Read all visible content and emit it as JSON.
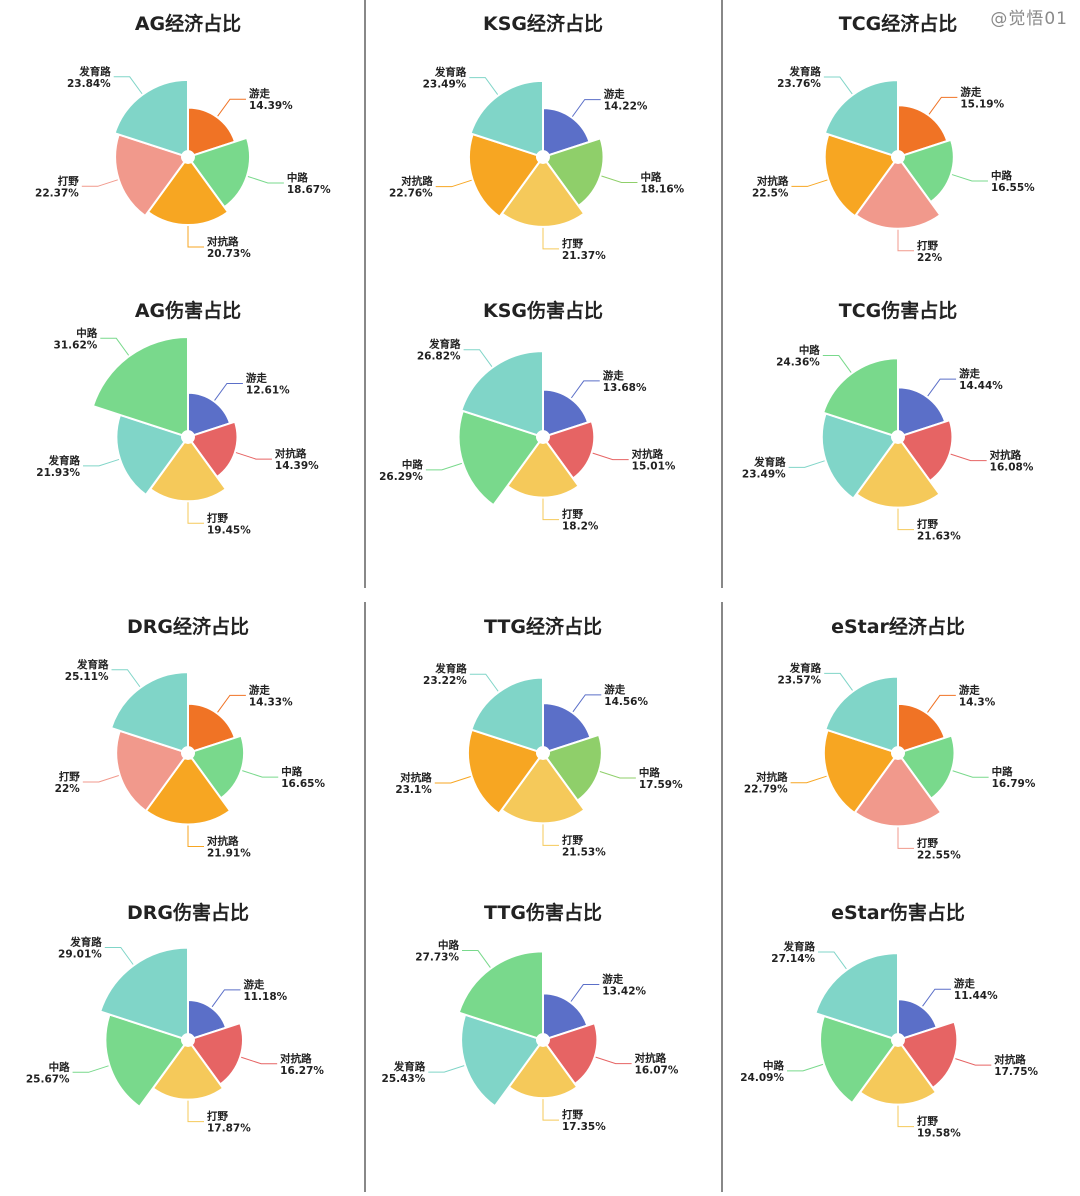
{
  "watermark": "@觉悟01",
  "colors": {
    "游走": [
      "#f07325",
      "#5b6fc8"
    ],
    "中路": [
      "#79d98c",
      "#8fcf6a"
    ],
    "对抗路": [
      "#f7a622",
      "#e66464"
    ],
    "打野": [
      "#f1998c",
      "#f5c95a"
    ],
    "发育路": [
      "#80d5c8"
    ]
  },
  "chart_data": [
    {
      "type": "pie",
      "variant": "nightingale-rose",
      "title": "AG经济占比",
      "role_labels": [
        "游走",
        "中路",
        "对抗路",
        "打野",
        "发育路"
      ],
      "values": [
        14.39,
        18.67,
        20.73,
        22.37,
        23.84
      ],
      "value_labels": [
        "14.39%",
        "18.67%",
        "20.73%",
        "22.37%",
        "23.84%"
      ],
      "colors": [
        "#f07325",
        "#79d98c",
        "#f7a622",
        "#f1998c",
        "#80d5c8"
      ]
    },
    {
      "type": "pie",
      "variant": "nightingale-rose",
      "title": "KSG经济占比",
      "role_labels": [
        "游走",
        "中路",
        "打野",
        "对抗路",
        "发育路"
      ],
      "values": [
        14.22,
        18.16,
        21.37,
        22.76,
        23.49
      ],
      "value_labels": [
        "14.22%",
        "18.16%",
        "21.37%",
        "22.76%",
        "23.49%"
      ],
      "colors": [
        "#5b6fc8",
        "#8fcf6a",
        "#f5c95a",
        "#f7a622",
        "#80d5c8"
      ]
    },
    {
      "type": "pie",
      "variant": "nightingale-rose",
      "title": "TCG经济占比",
      "role_labels": [
        "游走",
        "中路",
        "打野",
        "对抗路",
        "发育路"
      ],
      "values": [
        15.19,
        16.55,
        22,
        22.5,
        23.76
      ],
      "value_labels": [
        "15.19%",
        "16.55%",
        "22%",
        "22.5%",
        "23.76%"
      ],
      "colors": [
        "#f07325",
        "#79d98c",
        "#f1998c",
        "#f7a622",
        "#80d5c8"
      ]
    },
    {
      "type": "pie",
      "variant": "nightingale-rose",
      "title": "AG伤害占比",
      "role_labels": [
        "游走",
        "对抗路",
        "打野",
        "发育路",
        "中路"
      ],
      "values": [
        12.61,
        14.39,
        19.45,
        21.93,
        31.62
      ],
      "value_labels": [
        "12.61%",
        "14.39%",
        "19.45%",
        "21.93%",
        "31.62%"
      ],
      "colors": [
        "#5b6fc8",
        "#e66464",
        "#f5c95a",
        "#80d5c8",
        "#79d98c"
      ]
    },
    {
      "type": "pie",
      "variant": "nightingale-rose",
      "title": "KSG伤害占比",
      "role_labels": [
        "游走",
        "对抗路",
        "打野",
        "中路",
        "发育路"
      ],
      "values": [
        13.68,
        15.01,
        18.2,
        26.29,
        26.82
      ],
      "value_labels": [
        "13.68%",
        "15.01%",
        "18.2%",
        "26.29%",
        "26.82%"
      ],
      "colors": [
        "#5b6fc8",
        "#e66464",
        "#f5c95a",
        "#79d98c",
        "#80d5c8"
      ]
    },
    {
      "type": "pie",
      "variant": "nightingale-rose",
      "title": "TCG伤害占比",
      "role_labels": [
        "游走",
        "对抗路",
        "打野",
        "发育路",
        "中路"
      ],
      "values": [
        14.44,
        16.08,
        21.63,
        23.49,
        24.36
      ],
      "value_labels": [
        "14.44%",
        "16.08%",
        "21.63%",
        "23.49%",
        "24.36%"
      ],
      "colors": [
        "#5b6fc8",
        "#e66464",
        "#f5c95a",
        "#80d5c8",
        "#79d98c"
      ]
    },
    {
      "type": "pie",
      "variant": "nightingale-rose",
      "title": "DRG经济占比",
      "role_labels": [
        "游走",
        "中路",
        "对抗路",
        "打野",
        "发育路"
      ],
      "values": [
        14.33,
        16.65,
        21.91,
        22,
        25.11
      ],
      "value_labels": [
        "14.33%",
        "16.65%",
        "21.91%",
        "22%",
        "25.11%"
      ],
      "colors": [
        "#f07325",
        "#79d98c",
        "#f7a622",
        "#f1998c",
        "#80d5c8"
      ]
    },
    {
      "type": "pie",
      "variant": "nightingale-rose",
      "title": "TTG经济占比",
      "role_labels": [
        "游走",
        "中路",
        "打野",
        "对抗路",
        "发育路"
      ],
      "values": [
        14.56,
        17.59,
        21.53,
        23.1,
        23.22
      ],
      "value_labels": [
        "14.56%",
        "17.59%",
        "21.53%",
        "23.1%",
        "23.22%"
      ],
      "colors": [
        "#5b6fc8",
        "#8fcf6a",
        "#f5c95a",
        "#f7a622",
        "#80d5c8"
      ]
    },
    {
      "type": "pie",
      "variant": "nightingale-rose",
      "title": "eStar经济占比",
      "role_labels": [
        "游走",
        "中路",
        "打野",
        "对抗路",
        "发育路"
      ],
      "values": [
        14.3,
        16.79,
        22.55,
        22.79,
        23.57
      ],
      "value_labels": [
        "14.3%",
        "16.79%",
        "22.55%",
        "22.79%",
        "23.57%"
      ],
      "colors": [
        "#f07325",
        "#79d98c",
        "#f1998c",
        "#f7a622",
        "#80d5c8"
      ]
    },
    {
      "type": "pie",
      "variant": "nightingale-rose",
      "title": "DRG伤害占比",
      "role_labels": [
        "游走",
        "对抗路",
        "打野",
        "中路",
        "发育路"
      ],
      "values": [
        11.18,
        16.27,
        17.87,
        25.67,
        29.01
      ],
      "value_labels": [
        "11.18%",
        "16.27%",
        "17.87%",
        "25.67%",
        "29.01%"
      ],
      "colors": [
        "#5b6fc8",
        "#e66464",
        "#f5c95a",
        "#79d98c",
        "#80d5c8"
      ]
    },
    {
      "type": "pie",
      "variant": "nightingale-rose",
      "title": "TTG伤害占比",
      "role_labels": [
        "游走",
        "对抗路",
        "打野",
        "发育路",
        "中路"
      ],
      "values": [
        13.42,
        16.07,
        17.35,
        25.43,
        27.73
      ],
      "value_labels": [
        "13.42%",
        "16.07%",
        "17.35%",
        "25.43%",
        "27.73%"
      ],
      "colors": [
        "#5b6fc8",
        "#e66464",
        "#f5c95a",
        "#80d5c8",
        "#79d98c"
      ]
    },
    {
      "type": "pie",
      "variant": "nightingale-rose",
      "title": "eStar伤害占比",
      "role_labels": [
        "游走",
        "对抗路",
        "打野",
        "中路",
        "发育路"
      ],
      "values": [
        11.44,
        17.75,
        19.58,
        24.09,
        27.14
      ],
      "value_labels": [
        "11.44%",
        "17.75%",
        "19.58%",
        "24.09%",
        "27.14%"
      ],
      "colors": [
        "#5b6fc8",
        "#e66464",
        "#f5c95a",
        "#79d98c",
        "#80d5c8"
      ]
    }
  ]
}
